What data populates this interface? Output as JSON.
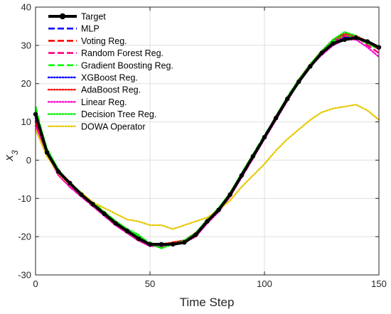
{
  "chart_data": {
    "type": "line",
    "title": "",
    "xlabel": "Time Step",
    "ylabel": "x3",
    "xlim": [
      0,
      150
    ],
    "ylim": [
      -30,
      40
    ],
    "xticks": [
      0,
      50,
      100,
      150
    ],
    "yticks": [
      -30,
      -20,
      -10,
      0,
      10,
      20,
      30,
      40
    ],
    "grid": true,
    "legend_position": "top-left",
    "x": [
      0,
      5,
      10,
      15,
      20,
      25,
      30,
      35,
      40,
      45,
      50,
      55,
      60,
      65,
      70,
      75,
      80,
      85,
      90,
      95,
      100,
      105,
      110,
      115,
      120,
      125,
      130,
      135,
      140,
      145,
      150
    ],
    "series": [
      {
        "name": "Target",
        "color": "#000000",
        "style": "solid-marker",
        "values": [
          12,
          2,
          -3,
          -6,
          -9,
          -11.5,
          -14,
          -16.5,
          -18.5,
          -20.5,
          -22,
          -22,
          -22,
          -21.5,
          -19.5,
          -16,
          -13,
          -9,
          -4,
          1,
          6,
          11,
          16,
          20.5,
          24.5,
          28,
          30.5,
          31.5,
          32,
          31,
          29.5
        ]
      },
      {
        "name": "MLP",
        "color": "#0000ff",
        "style": "dashed",
        "values": [
          11,
          2.5,
          -3,
          -6.5,
          -9,
          -11.5,
          -14,
          -16.5,
          -18.5,
          -20.5,
          -22,
          -22.5,
          -22,
          -21.5,
          -19.5,
          -16,
          -13,
          -9,
          -4,
          1,
          6,
          11,
          16,
          20.5,
          24.5,
          28,
          30.5,
          32,
          32,
          31,
          29
        ]
      },
      {
        "name": "Voting Reg.",
        "color": "#ff0000",
        "style": "dashed",
        "values": [
          10,
          2,
          -3.5,
          -6.5,
          -9,
          -12,
          -14,
          -16.5,
          -19,
          -21,
          -22,
          -22.5,
          -21.5,
          -21,
          -19,
          -16,
          -13,
          -9,
          -4,
          1,
          6,
          11,
          16,
          21,
          25,
          28.5,
          31,
          32.5,
          32,
          30.5,
          29
        ]
      },
      {
        "name": "Random Forest Reg.",
        "color": "#ff007f",
        "style": "dashed",
        "values": [
          10.5,
          1.5,
          -3.5,
          -7,
          -9.5,
          -12,
          -14.5,
          -17,
          -19,
          -21,
          -22,
          -22.5,
          -22,
          -21,
          -19.5,
          -16,
          -13,
          -9,
          -4.5,
          0.5,
          6,
          11,
          16,
          21,
          25,
          28,
          31,
          32.5,
          32.5,
          30,
          28
        ]
      },
      {
        "name": "Gradient Boosting Reg.",
        "color": "#00ff00",
        "style": "dashed",
        "values": [
          14,
          2,
          -3,
          -6,
          -9,
          -11,
          -13.5,
          -16,
          -18,
          -20,
          -21.5,
          -23,
          -21.5,
          -21.5,
          -19,
          -16,
          -13,
          -9,
          -3.5,
          1.5,
          6.5,
          11,
          16.5,
          21,
          25,
          28.5,
          31,
          33,
          32,
          30.5,
          29
        ]
      },
      {
        "name": "XGBoost Reg.",
        "color": "#0000ff",
        "style": "dotted",
        "values": [
          11,
          2,
          -3,
          -6.5,
          -9,
          -11.5,
          -14,
          -16.5,
          -18.5,
          -20.5,
          -22,
          -22,
          -22,
          -21.5,
          -19.5,
          -16,
          -13,
          -9,
          -4,
          1,
          6,
          11,
          16,
          20.5,
          24.5,
          28,
          30.5,
          32,
          32,
          31,
          29.5
        ]
      },
      {
        "name": "AdaBoost Reg.",
        "color": "#ff0000",
        "style": "dotted",
        "values": [
          10,
          2,
          -3.5,
          -6.5,
          -9.5,
          -11.5,
          -14,
          -17,
          -19,
          -21,
          -22.5,
          -22,
          -21.5,
          -21,
          -19,
          -16.5,
          -13,
          -9.5,
          -4,
          1,
          6,
          11.5,
          16,
          21,
          25,
          28.5,
          31.5,
          33,
          32.5,
          31,
          29
        ]
      },
      {
        "name": "Linear Reg.",
        "color": "#ff00cc",
        "style": "dotted",
        "values": [
          9,
          1.5,
          -4,
          -7,
          -9.5,
          -12,
          -14.5,
          -17,
          -19,
          -21,
          -22.5,
          -22.5,
          -22,
          -21.5,
          -20,
          -16.5,
          -13.5,
          -9.5,
          -4.5,
          0.5,
          5.5,
          10.5,
          15.5,
          20.5,
          24.5,
          27.5,
          30,
          31.5,
          31.5,
          29.5,
          27
        ]
      },
      {
        "name": "Decision Tree Reg.",
        "color": "#00ee00",
        "style": "dotted",
        "values": [
          13,
          3,
          -2.5,
          -6,
          -8.5,
          -11.5,
          -13.5,
          -16,
          -18,
          -19.5,
          -22,
          -23,
          -22,
          -21,
          -19,
          -15.5,
          -12.5,
          -8.5,
          -3.5,
          1.5,
          6,
          11.5,
          16.5,
          21,
          25,
          28.5,
          31.5,
          33.5,
          32.5,
          30.5,
          29.5
        ]
      },
      {
        "name": "DOWA Operator",
        "color": "#e6c800",
        "style": "dotted",
        "values": [
          8,
          1,
          -3.5,
          -6.5,
          -8.5,
          -11,
          -12.5,
          -14,
          -15.5,
          -16,
          -17,
          -17,
          -18,
          -17,
          -16,
          -15,
          -13,
          -10.5,
          -7,
          -4,
          -1,
          2.5,
          5.5,
          8,
          10.5,
          12.5,
          13.5,
          14,
          14.5,
          13,
          10.5
        ]
      }
    ]
  }
}
